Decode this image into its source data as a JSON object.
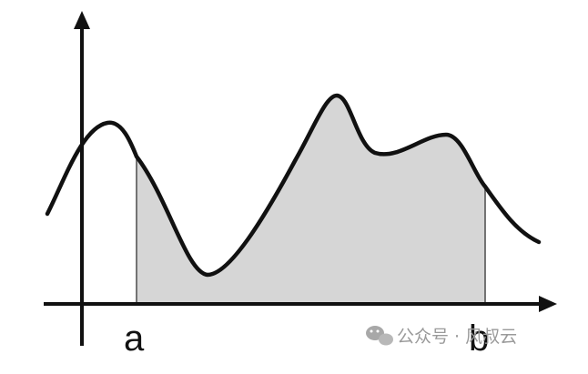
{
  "diagram": {
    "labels": {
      "a": "a",
      "b": "b"
    },
    "colors": {
      "curve": "#111111",
      "axis": "#111111",
      "shaded_area": "#d6d6d6",
      "bound_lines": "#555555"
    }
  },
  "watermark": {
    "icon": "wechat-icon",
    "text": "公众号 · 风叔云"
  }
}
